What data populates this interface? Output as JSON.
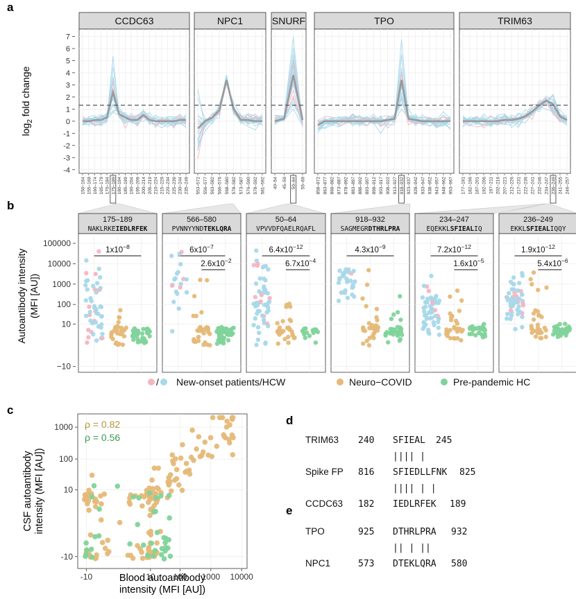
{
  "panel_labels": [
    "a",
    "b",
    "c",
    "d",
    "e"
  ],
  "colors": {
    "patients_blue": "#a8d8ea",
    "patients_pink": "#f4b6c2",
    "neuro_covid": "#e5b978",
    "prepandemic": "#7fd39a",
    "median_line": "#9a9a9a",
    "strip_bg": "#d9d9d9",
    "grid": "#ebebeb",
    "rho_neuro": "#b8953e",
    "rho_pre": "#3f9a5a"
  },
  "chart_data": [
    {
      "type": "line",
      "panel": "a",
      "ylabel": "log2 fold change",
      "ylim": [
        -4.3,
        7.6
      ],
      "yticks": [
        -4,
        -3,
        -2,
        -1,
        0,
        1,
        2,
        3,
        4,
        5,
        6,
        7
      ],
      "threshold": 1.32,
      "facets": [
        {
          "name": "CCDC63",
          "ticks": [
            "150–164",
            "155–169",
            "160–174",
            "165–179",
            "170–184",
            "175–189",
            "180–194",
            "185–199",
            "190–204",
            "195–209",
            "200–214",
            "205–219",
            "210–224",
            "215–229",
            "220–234",
            "225–239",
            "230–244",
            "235–249"
          ],
          "highlight": "175–189",
          "median": [
            0,
            0,
            0.1,
            0.1,
            0.3,
            2.4,
            0.6,
            0.3,
            0.1,
            0.1,
            0.5,
            0.1,
            0,
            0,
            0,
            0,
            0.1,
            0.1
          ]
        },
        {
          "name": "NPC1",
          "ticks": [
            "553–572",
            "556–577",
            "563–582",
            "566–576",
            "568–580",
            "578–582",
            "573–587",
            "576–590",
            "578–592",
            "581–592"
          ],
          "highlight": "566–580",
          "median": [
            -0.6,
            0,
            0.3,
            0.9,
            3.4,
            1,
            0.1,
            0.1,
            0,
            0
          ]
        },
        {
          "name": "SNURF",
          "ticks": [
            "40–54",
            "45–59",
            "50–64",
            "55–69"
          ],
          "highlight": "50–64",
          "median": [
            0,
            0.2,
            3.8,
            0.1
          ]
        },
        {
          "name": "TPO",
          "ticks": [
            "858–872",
            "863–877",
            "868–882",
            "873–887",
            "878–892",
            "883–897",
            "888–902",
            "893–907",
            "898–912",
            "903–917",
            "908–922",
            "913–927",
            "918–932",
            "923–937",
            "928–942",
            "933–947",
            "938–952",
            "943–957",
            "948–962",
            "953–967"
          ],
          "highlight": "918–932",
          "median": [
            -0.3,
            0,
            0,
            0,
            0,
            0,
            0,
            0,
            0,
            0,
            0.1,
            0.2,
            3.4,
            0.2,
            0.1,
            0,
            0,
            0,
            0,
            0
          ]
        },
        {
          "name": "TRIM63",
          "ticks": [
            "177–191",
            "182–196",
            "187–201",
            "192–206",
            "197–211",
            "202–216",
            "207–221",
            "212–226",
            "217–231",
            "222–236",
            "227–241",
            "232–246",
            "234–247",
            "236–249",
            "241–255",
            "246–257"
          ],
          "highlight": "236–249",
          "median": [
            0,
            0,
            0,
            0,
            0,
            0,
            0.1,
            0.1,
            0.2,
            0.4,
            0.8,
            1.3,
            1.7,
            1.4,
            0.4,
            0.1
          ]
        }
      ]
    },
    {
      "type": "scatter",
      "panel": "b",
      "ylabel": [
        "Autoantibody intensity",
        "(MFI [AU])"
      ],
      "yticks": [
        "100000",
        "10000",
        "1000",
        "100",
        "10",
        "−10"
      ],
      "groups": [
        "New-onset patients/HCW",
        "Neuro−COVID",
        "Pre-pandemic HC"
      ],
      "facets": [
        {
          "range": "175–189",
          "seq_pre": "NAKLRKE",
          "seq_bold": "IEDLRFEK",
          "seq_post": "",
          "p_top": "1x10−8",
          "p_bottom": "",
          "medians": [
            20,
            2,
            1
          ],
          "spreads": [
            1.4,
            0.8,
            0.3
          ],
          "counts": [
            50,
            30,
            35
          ]
        },
        {
          "range": "566–580",
          "seq_pre": "PVNNYYND",
          "seq_bold": "TEKLQRA",
          "seq_post": "",
          "p_top": "6x10−7",
          "p_bottom": "2.6x10−2",
          "medians": [
            1500,
            5,
            2
          ],
          "spreads": [
            0.8,
            1.1,
            0.5
          ],
          "counts": [
            20,
            35,
            40
          ]
        },
        {
          "range": "50–64",
          "seq_pre": "VPVVDFQAELRQAFL",
          "seq_bold": "",
          "seq_post": "",
          "p_top": "6.4x10−12",
          "p_bottom": "6.7x10−4",
          "medians": [
            150,
            6,
            2
          ],
          "spreads": [
            1.1,
            0.9,
            0.2
          ],
          "counts": [
            55,
            30,
            15
          ]
        },
        {
          "range": "918–932",
          "seq_pre": "SAGMEGR",
          "seq_bold": "DTHRLPRA",
          "seq_post": "",
          "p_top": "4.3x10−9",
          "p_bottom": "",
          "medians": [
            1500,
            8,
            3
          ],
          "spreads": [
            0.5,
            1.2,
            0.7
          ],
          "counts": [
            30,
            30,
            30
          ]
        },
        {
          "range": "234–247",
          "seq_pre": "EQEKKL",
          "seq_bold": "SFIEAL",
          "seq_post": "IQ",
          "p_top": "7.2x10−12",
          "p_bottom": "1.6x10−5",
          "medians": [
            80,
            20,
            4
          ],
          "spreads": [
            0.6,
            0.9,
            0.3
          ],
          "counts": [
            55,
            30,
            25
          ]
        },
        {
          "range": "236–249",
          "seq_pre": "EKKL",
          "seq_bold": "SFIEAL",
          "seq_post": "IQQY",
          "p_top": "1.9x10−12",
          "p_bottom": "5.4x10−6",
          "medians": [
            150,
            30,
            5
          ],
          "spreads": [
            0.6,
            0.8,
            0.2
          ],
          "counts": [
            50,
            30,
            40
          ]
        }
      ]
    },
    {
      "type": "scatter",
      "panel": "c",
      "xlabel": [
        "Blood autoantibody",
        "intensity (MFI [AU])"
      ],
      "ylabel": [
        "CSF autoantibody",
        "intensity (MFI [AU])"
      ],
      "xticks": [
        "-10",
        "10",
        "100",
        "1000",
        "10000"
      ],
      "yticks": [
        "1000",
        "100",
        "10",
        "-10"
      ],
      "rho": [
        {
          "label": "ρ = 0.82",
          "group": "Neuro−COVID"
        },
        {
          "label": "ρ = 0.56",
          "group": "Pre-pandemic HC"
        }
      ],
      "points_note": "Neuro−COVID ~150 points, Pre-pandemic HC ~40 points"
    }
  ],
  "legend": [
    {
      "label": "New-onset patients/HCW",
      "color_key": "patients"
    },
    {
      "label": "Neuro−COVID",
      "color_key": "neuro_covid"
    },
    {
      "label": "Pre-pandemic HC",
      "color_key": "prepandemic"
    }
  ],
  "legend_separator": "/",
  "alignment_d": {
    "rows": [
      {
        "name": "TRIM63",
        "start": "240",
        "seq": "SFIEAL",
        "end": "245"
      },
      {
        "name": "bars",
        "seq": "|||| |"
      },
      {
        "name": "Spike FP",
        "start": "816",
        "seq": "SFIEDLLFNK",
        "end": "825"
      },
      {
        "name": "bars",
        "seq": " |||| | |"
      },
      {
        "name": "CCDC63",
        "start": "182",
        "seq": " IEDLRFEK",
        "end": "189"
      }
    ]
  },
  "alignment_e": {
    "rows": [
      {
        "name": "TPO",
        "start": "925",
        "seq": "DTHRLPRA",
        "end": "932"
      },
      {
        "name": "bars",
        "seq": "||  | ||"
      },
      {
        "name": "NPC1",
        "start": "573",
        "seq": "DTEKLQRA",
        "end": "580"
      }
    ]
  }
}
